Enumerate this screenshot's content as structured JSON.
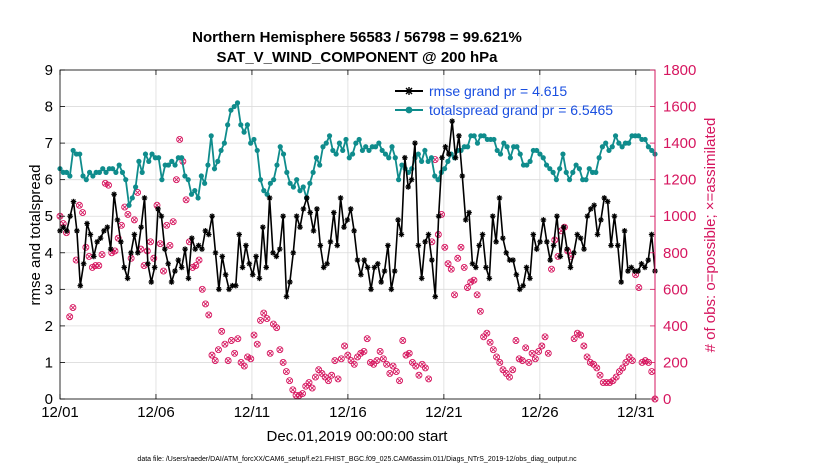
{
  "chart_data": {
    "type": "line",
    "title": "Northern Hemisphere 56583 / 56798 = 99.621%",
    "subtitle": "SAT_V_WIND_COMPONENT @ 200 hPa",
    "xlabel": "Dec.01,2019 00:00:00 start",
    "ylabel_left": "rmse and totalspread",
    "ylabel_right": "# of obs: o=possible; ×=assimilated",
    "footnote": "data file: /Users/raeder/DAI/ATM_forcXX/CAM6_setup/f.e21.FHIST_BGC.f09_025.CAM6assim.011/Diags_NTrS_2019-12/obs_diag_output.nc",
    "xlim": [
      1,
      32
    ],
    "ylim_left": [
      0,
      9
    ],
    "ylim_right": [
      0,
      1800
    ],
    "x_ticks": [
      1,
      6,
      11,
      16,
      21,
      26,
      31
    ],
    "x_tick_labels": [
      "12/01",
      "12/06",
      "12/11",
      "12/16",
      "12/21",
      "12/26",
      "12/31"
    ],
    "y_left_ticks": [
      "0",
      "1",
      "2",
      "3",
      "4",
      "5",
      "6",
      "7",
      "8",
      "9"
    ],
    "y_right_ticks": [
      "0",
      "200",
      "400",
      "600",
      "800",
      "1000",
      "1200",
      "1400",
      "1600",
      "1800"
    ],
    "colors": {
      "rmse": "#000000",
      "spread": "#0f8c8c",
      "obs": "#d6165f",
      "legend_text": "#1a4fe0"
    },
    "series": [
      {
        "name": "rmse grand pr = 4.615",
        "axis": "left",
        "values": [
          4.6,
          4.7,
          4.6,
          5.0,
          5.4,
          4.6,
          3.1,
          3.7,
          4.8,
          4.5,
          3.9,
          4.3,
          4.4,
          4.6,
          4.7,
          4.1,
          5.6,
          4.9,
          4.3,
          3.6,
          3.3,
          4.0,
          4.5,
          4.0,
          4.7,
          5.5,
          3.7,
          3.2,
          3.6,
          5.2,
          5.0,
          4.1,
          3.7,
          3.2,
          3.5,
          3.8,
          3.6,
          4.1,
          3.3,
          4.4,
          4.1,
          4.2,
          4.1,
          4.6,
          4.5,
          5.0,
          4.0,
          3.0,
          3.9,
          3.4,
          3.0,
          3.1,
          3.1,
          4.5,
          3.6,
          4.2,
          3.7,
          3.4,
          3.9,
          3.3,
          4.7,
          3.6,
          5.5,
          4.0,
          3.9,
          4.1,
          5.0,
          2.8,
          3.2,
          4.0,
          5.0,
          4.7,
          5.2,
          5.5,
          5.1,
          4.6,
          5.2,
          4.2,
          3.6,
          3.7,
          4.3,
          5.1,
          4.2,
          5.5,
          4.7,
          4.9,
          5.2,
          4.6,
          3.8,
          3.4,
          3.8,
          3.6,
          3.0,
          3.6,
          3.7,
          3.2,
          3.5,
          4.2,
          3.0,
          3.5,
          4.9,
          4.5,
          6.6,
          5.8,
          6.0,
          7.0,
          4.2,
          3.3,
          4.3,
          4.5,
          3.8,
          2.8,
          5.0,
          6.6,
          6.9,
          6.7,
          7.6,
          6.6,
          7.2,
          6.1,
          4.9,
          5.1,
          3.7,
          3.6,
          4.2,
          4.5,
          3.6,
          3.3,
          5.0,
          4.3,
          5.5,
          4.4,
          4.0,
          3.8,
          3.8,
          3.4,
          3.0,
          3.1,
          3.6,
          3.3,
          4.5,
          4.1,
          4.3,
          4.9,
          4.3,
          3.8,
          4.2,
          5.0,
          3.9,
          4.7,
          4.1,
          3.6,
          4.0,
          4.5,
          4.4,
          4.1,
          5.0,
          5.2,
          5.3,
          4.5,
          4.9,
          5.5,
          5.4,
          4.2,
          5.0,
          4.2,
          3.2,
          4.6,
          3.5,
          3.6,
          3.5,
          3.5,
          3.7,
          3.6,
          3.8,
          4.5,
          3.5
        ]
      },
      {
        "name": "totalspread grand pr = 6.5465",
        "axis": "left",
        "values": [
          6.3,
          6.2,
          6.2,
          6.1,
          6.8,
          6.7,
          6.7,
          6.1,
          6.0,
          6.2,
          6.1,
          6.2,
          6.2,
          6.3,
          6.2,
          6.3,
          6.3,
          6.2,
          6.4,
          6.2,
          6.0,
          5.3,
          5.5,
          5.8,
          6.5,
          6.2,
          6.7,
          6.5,
          6.7,
          6.6,
          6.6,
          6.0,
          6.4,
          6.4,
          6.5,
          6.4,
          6.6,
          6.6,
          6.1,
          6.0,
          5.6,
          5.7,
          5.5,
          6.1,
          5.9,
          6.4,
          7.2,
          6.3,
          6.5,
          6.8,
          7.0,
          7.5,
          7.9,
          8.0,
          8.1,
          7.5,
          7.3,
          7.5,
          7.0,
          7.1,
          6.8,
          6.0,
          5.7,
          5.6,
          5.9,
          6.0,
          6.4,
          6.9,
          6.7,
          6.2,
          5.9,
          5.8,
          6.0,
          5.7,
          5.8,
          5.5,
          5.9,
          6.2,
          6.6,
          6.4,
          6.9,
          7.0,
          7.2,
          6.8,
          6.7,
          7.0,
          6.8,
          7.1,
          6.6,
          6.7,
          7.0,
          7.1,
          6.8,
          6.9,
          6.8,
          6.9,
          6.9,
          7.0,
          6.8,
          6.7,
          6.6,
          6.9,
          6.6,
          6.0,
          6.4,
          6.3,
          6.2,
          6.3,
          6.6,
          6.7,
          6.5,
          6.8,
          6.5,
          6.6,
          6.1,
          6.0,
          6.2,
          6.3,
          6.5,
          6.7,
          6.6,
          6.8,
          6.8,
          6.9,
          6.9,
          7.2,
          7.2,
          7.0,
          7.2,
          7.2,
          7.1,
          7.1,
          7.1,
          6.8,
          6.7,
          7.0,
          6.9,
          6.6,
          6.9,
          6.9,
          6.7,
          6.4,
          6.4,
          6.5,
          6.8,
          6.8,
          6.7,
          6.6,
          6.4,
          6.3,
          6.2,
          6.0,
          6.3,
          6.7,
          6.2,
          6.0,
          6.2,
          6.4,
          6.3,
          6.0,
          6.0,
          6.3,
          6.2,
          6.2,
          6.6,
          6.9,
          7.0,
          6.8,
          6.9,
          7.2,
          7.0,
          6.9,
          7.0,
          7.0,
          7.2,
          7.2,
          7.2,
          7.1,
          7.1,
          6.9,
          6.8,
          6.7
        ]
      },
      {
        "name": "obs possible / assimilated",
        "axis": "right",
        "values": [
          1000,
          960,
          910,
          450,
          500,
          760,
          1060,
          1020,
          830,
          780,
          720,
          730,
          730,
          790,
          1180,
          1170,
          800,
          810,
          880,
          950,
          1050,
          1010,
          770,
          980,
          1130,
          820,
          730,
          810,
          860,
          770,
          1060,
          850,
          700,
          950,
          840,
          970,
          1200,
          1420,
          1300,
          1090,
          860,
          720,
          730,
          760,
          600,
          520,
          460,
          240,
          210,
          270,
          370,
          300,
          210,
          320,
          250,
          330,
          200,
          180,
          230,
          220,
          350,
          300,
          430,
          470,
          440,
          250,
          410,
          390,
          270,
          200,
          150,
          100,
          50,
          20,
          20,
          30,
          70,
          90,
          60,
          120,
          160,
          140,
          120,
          100,
          130,
          210,
          110,
          220,
          290,
          240,
          210,
          190,
          230,
          250,
          260,
          330,
          200,
          190,
          210,
          260,
          220,
          190,
          140,
          180,
          150,
          100,
          320,
          240,
          250,
          200,
          180,
          130,
          190,
          170,
          110,
          860,
          1310,
          900,
          1010,
          830,
          740,
          710,
          570,
          770,
          830,
          720,
          610,
          640,
          650,
          570,
          480,
          340,
          360,
          310,
          270,
          230,
          200,
          160,
          140,
          120,
          160,
          320,
          220,
          210,
          280,
          200,
          250,
          220,
          260,
          290,
          340,
          250,
          710,
          870,
          780,
          920,
          940,
          810,
          780,
          330,
          360,
          350,
          290,
          230,
          200,
          190,
          170,
          130,
          90,
          90,
          90,
          100,
          120,
          150,
          170,
          200,
          230,
          210,
          680,
          610,
          200,
          210,
          200,
          150,
          0
        ]
      }
    ]
  }
}
